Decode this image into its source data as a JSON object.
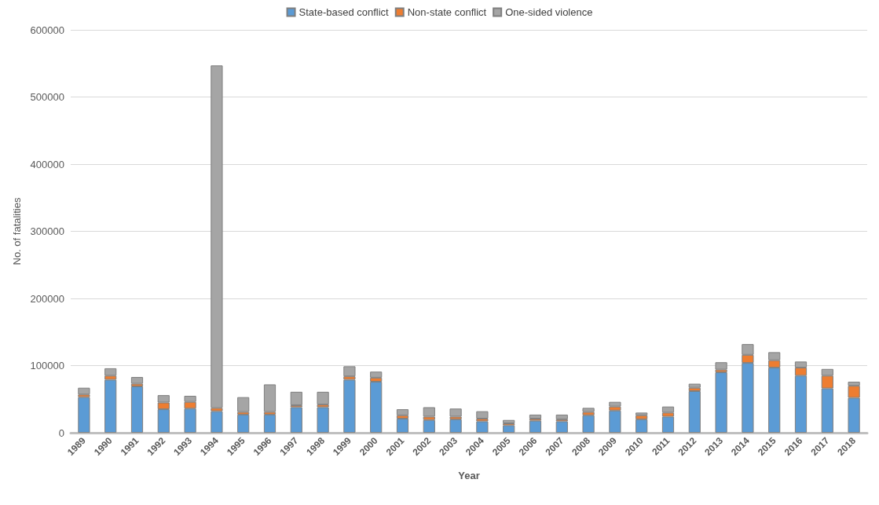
{
  "chart_data": {
    "type": "bar",
    "stacked": true,
    "xlabel": "Year",
    "ylabel": "No. of fatalities",
    "categories": [
      "1989",
      "1990",
      "1991",
      "1992",
      "1993",
      "1994",
      "1995",
      "1996",
      "1997",
      "1998",
      "1999",
      "2000",
      "2001",
      "2002",
      "2003",
      "2004",
      "2005",
      "2006",
      "2007",
      "2008",
      "2009",
      "2010",
      "2011",
      "2012",
      "2013",
      "2014",
      "2015",
      "2016",
      "2017",
      "2018"
    ],
    "series": [
      {
        "name": "State-based conflict",
        "color": "#5b9bd5",
        "values": [
          53000,
          79000,
          69000,
          35000,
          36000,
          32000,
          27000,
          27000,
          38000,
          38000,
          79000,
          76000,
          21000,
          19000,
          20000,
          17000,
          11000,
          18000,
          17000,
          26000,
          33000,
          20000,
          24000,
          62000,
          90000,
          104000,
          97000,
          85000,
          66000,
          52000
        ]
      },
      {
        "name": "Non-state conflict",
        "color": "#ed7d31",
        "values": [
          4000,
          6000,
          4000,
          10000,
          10000,
          5000,
          4000,
          4000,
          3000,
          4000,
          5000,
          6000,
          5000,
          5000,
          4000,
          4000,
          3000,
          3000,
          3000,
          5000,
          6000,
          6000,
          6000,
          5000,
          4000,
          12000,
          11000,
          12000,
          19000,
          18000
        ]
      },
      {
        "name": "One-sided violence",
        "color": "#a5a5a5",
        "values": [
          10000,
          11000,
          10000,
          11000,
          9000,
          510000,
          22000,
          41000,
          20000,
          19000,
          15000,
          9000,
          9000,
          14000,
          12000,
          11000,
          5000,
          6000,
          7000,
          6000,
          7000,
          4000,
          9000,
          6000,
          11000,
          16000,
          12000,
          9000,
          10000,
          6000
        ]
      }
    ],
    "ylim": [
      0,
      600000
    ],
    "yticks": [
      0,
      100000,
      200000,
      300000,
      400000,
      500000,
      600000
    ],
    "grid": "y",
    "legend": "top"
  }
}
